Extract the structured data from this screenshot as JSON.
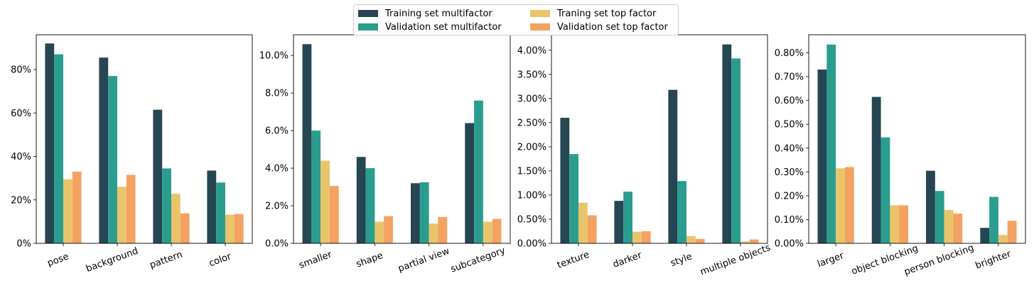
{
  "legend": [
    {
      "label": "Training set multifactor",
      "color": "#264653"
    },
    {
      "label": "Validation set multifactor",
      "color": "#2a9d8f"
    },
    {
      "label": "Traning set top factor",
      "color": "#e9c46a"
    },
    {
      "label": "Validation set top factor",
      "color": "#f4a261"
    }
  ],
  "chart_data": [
    {
      "type": "bar",
      "categories": [
        "pose",
        "background",
        "pattern",
        "color"
      ],
      "series": [
        {
          "name": "Training set multifactor",
          "values": [
            92.0,
            85.5,
            61.5,
            33.5
          ]
        },
        {
          "name": "Validation set multifactor",
          "values": [
            87.0,
            77.0,
            34.5,
            28.0
          ]
        },
        {
          "name": "Traning set top factor",
          "values": [
            29.5,
            26.0,
            22.8,
            13.2
          ]
        },
        {
          "name": "Validation set top factor",
          "values": [
            33.0,
            31.5,
            13.8,
            13.5
          ]
        }
      ],
      "ylim": [
        0,
        96
      ],
      "yticks": [
        0,
        20,
        40,
        60,
        80
      ],
      "ytick_labels": [
        "0%",
        "20%",
        "40%",
        "60%",
        "80%"
      ]
    },
    {
      "type": "bar",
      "categories": [
        "smaller",
        "shape",
        "partial view",
        "subcategory"
      ],
      "series": [
        {
          "name": "Training set multifactor",
          "values": [
            10.6,
            4.6,
            3.2,
            6.4
          ]
        },
        {
          "name": "Validation set multifactor",
          "values": [
            6.0,
            4.0,
            3.25,
            7.6
          ]
        },
        {
          "name": "Traning set top factor",
          "values": [
            4.4,
            1.15,
            1.05,
            1.15
          ]
        },
        {
          "name": "Validation set top factor",
          "values": [
            3.05,
            1.45,
            1.4,
            1.3
          ]
        }
      ],
      "ylim": [
        0,
        11.1
      ],
      "yticks": [
        0,
        2,
        4,
        6,
        8,
        10
      ],
      "ytick_labels": [
        "0.0%",
        "2.0%",
        "4.0%",
        "6.0%",
        "8.0%",
        "10.0%"
      ]
    },
    {
      "type": "bar",
      "categories": [
        "texture",
        "darker",
        "style",
        "multiple objects"
      ],
      "series": [
        {
          "name": "Training set multifactor",
          "values": [
            2.6,
            0.88,
            3.18,
            4.12
          ]
        },
        {
          "name": "Validation set multifactor",
          "values": [
            1.85,
            1.07,
            1.29,
            3.83
          ]
        },
        {
          "name": "Traning set top factor",
          "values": [
            0.84,
            0.24,
            0.15,
            0.04
          ]
        },
        {
          "name": "Validation set top factor",
          "values": [
            0.58,
            0.25,
            0.09,
            0.08
          ]
        }
      ],
      "ylim": [
        0,
        4.32
      ],
      "yticks": [
        0,
        0.5,
        1.0,
        1.5,
        2.0,
        2.5,
        3.0,
        3.5,
        4.0
      ],
      "ytick_labels": [
        "0.00%",
        "0.50%",
        "1.00%",
        "1.50%",
        "2.00%",
        "2.50%",
        "3.00%",
        "3.50%",
        "4.00%"
      ]
    },
    {
      "type": "bar",
      "categories": [
        "larger",
        "object blocking",
        "person blocking",
        "brighter"
      ],
      "series": [
        {
          "name": "Training set multifactor",
          "values": [
            0.73,
            0.615,
            0.305,
            0.065
          ]
        },
        {
          "name": "Validation set multifactor",
          "values": [
            0.835,
            0.445,
            0.22,
            0.195
          ]
        },
        {
          "name": "Traning set top factor",
          "values": [
            0.315,
            0.16,
            0.14,
            0.035
          ]
        },
        {
          "name": "Validation set top factor",
          "values": [
            0.32,
            0.16,
            0.125,
            0.095
          ]
        }
      ],
      "ylim": [
        0,
        0.876
      ],
      "yticks": [
        0,
        0.1,
        0.2,
        0.3,
        0.4,
        0.5,
        0.6,
        0.7,
        0.8
      ],
      "ytick_labels": [
        "0.00%",
        "0.10%",
        "0.20%",
        "0.30%",
        "0.40%",
        "0.50%",
        "0.60%",
        "0.70%",
        "0.80%"
      ]
    }
  ]
}
